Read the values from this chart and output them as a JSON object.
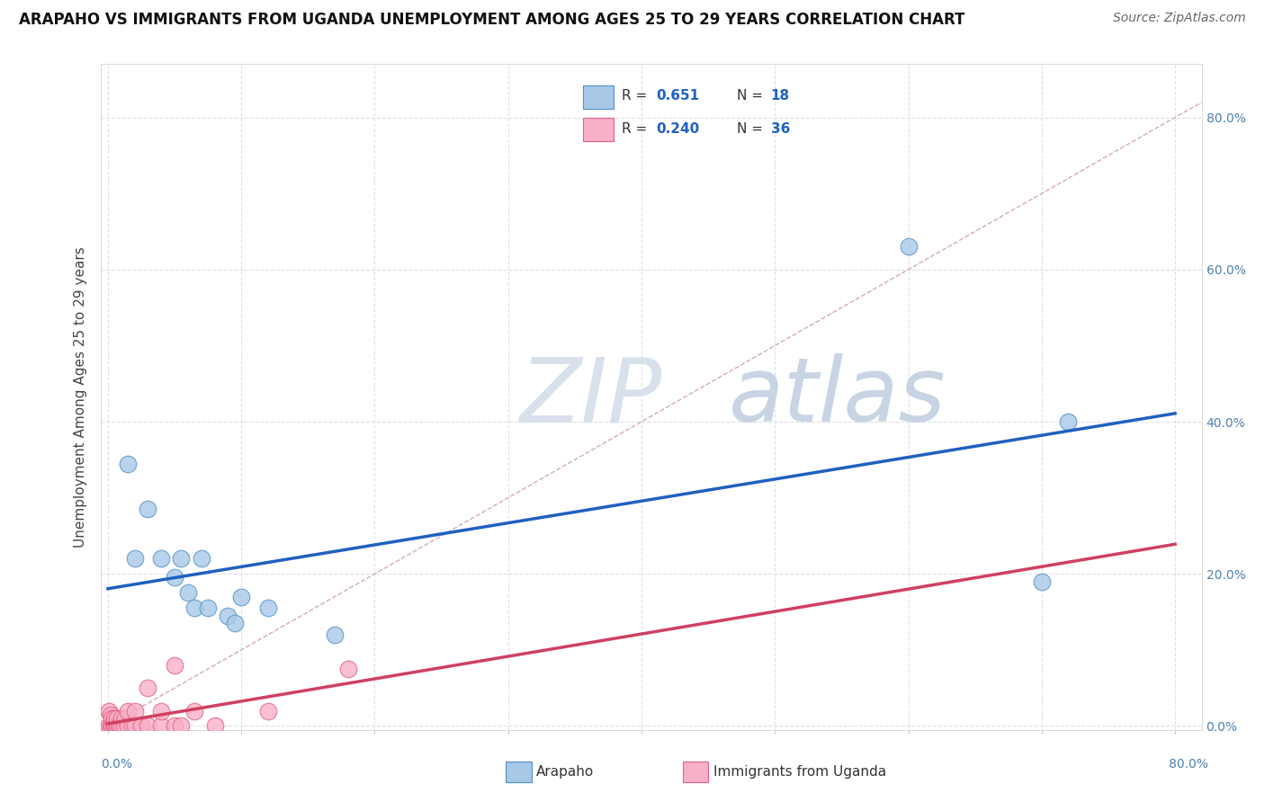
{
  "title": "ARAPAHO VS IMMIGRANTS FROM UGANDA UNEMPLOYMENT AMONG AGES 25 TO 29 YEARS CORRELATION CHART",
  "source": "Source: ZipAtlas.com",
  "ylabel": "Unemployment Among Ages 25 to 29 years",
  "xlim": [
    -0.005,
    0.82
  ],
  "ylim": [
    -0.005,
    0.87
  ],
  "x_ticks": [
    0.0,
    0.1,
    0.2,
    0.3,
    0.4,
    0.5,
    0.6,
    0.7,
    0.8
  ],
  "y_ticks": [
    0.0,
    0.2,
    0.4,
    0.6,
    0.8
  ],
  "arapaho_x": [
    0.015,
    0.02,
    0.03,
    0.04,
    0.05,
    0.055,
    0.06,
    0.065,
    0.07,
    0.075,
    0.09,
    0.095,
    0.1,
    0.12,
    0.17,
    0.6,
    0.7,
    0.72
  ],
  "arapaho_y": [
    0.345,
    0.22,
    0.285,
    0.22,
    0.195,
    0.22,
    0.175,
    0.155,
    0.22,
    0.155,
    0.145,
    0.135,
    0.17,
    0.155,
    0.12,
    0.63,
    0.19,
    0.4
  ],
  "uganda_x": [
    0.001,
    0.001,
    0.002,
    0.002,
    0.003,
    0.003,
    0.004,
    0.004,
    0.005,
    0.005,
    0.006,
    0.007,
    0.007,
    0.008,
    0.009,
    0.01,
    0.01,
    0.012,
    0.013,
    0.015,
    0.015,
    0.018,
    0.02,
    0.02,
    0.025,
    0.03,
    0.03,
    0.04,
    0.04,
    0.05,
    0.05,
    0.055,
    0.065,
    0.08,
    0.12,
    0.18
  ],
  "uganda_y": [
    0.0,
    0.02,
    0.0,
    0.015,
    0.0,
    0.01,
    0.0,
    0.005,
    0.0,
    0.01,
    0.0,
    0.0,
    0.01,
    0.0,
    0.0,
    0.0,
    0.01,
    0.0,
    0.01,
    0.0,
    0.02,
    0.0,
    0.0,
    0.02,
    0.0,
    0.0,
    0.05,
    0.0,
    0.02,
    0.0,
    0.08,
    0.0,
    0.02,
    0.0,
    0.02,
    0.075
  ],
  "arapaho_R": 0.651,
  "arapaho_N": 18,
  "uganda_R": 0.24,
  "uganda_N": 36,
  "arapaho_dot_color": "#a8c8e8",
  "arapaho_edge_color": "#5090c8",
  "arapaho_line_color": "#2060c0",
  "uganda_dot_color": "#f8b0c8",
  "uganda_edge_color": "#e06080",
  "uganda_line_color": "#d04060",
  "diagonal_color": "#d0a0b0",
  "diagonal_dash": "dashed",
  "watermark_zip_color": "#d8e0ec",
  "watermark_atlas_color": "#c8d4e4",
  "bg_color": "#ffffff",
  "grid_color": "#e0e0e8",
  "legend_R_color": "#2060c0",
  "legend_N_color": "#2060c0",
  "title_fontsize": 12,
  "source_fontsize": 10,
  "ylabel_fontsize": 11,
  "tick_label_color": "#5080b0",
  "tick_label_fontsize": 10
}
